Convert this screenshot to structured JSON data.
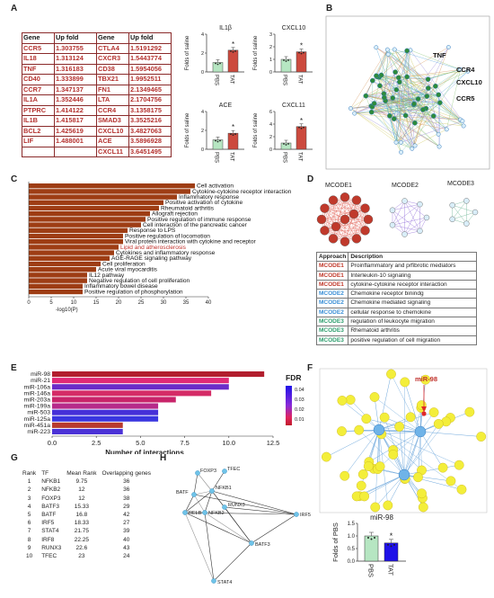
{
  "labels": {
    "a": "A",
    "b": "B",
    "c": "C",
    "d": "D",
    "e": "E",
    "f": "F",
    "g": "G",
    "h": "H"
  },
  "panelA": {
    "headers": [
      "Gene",
      "Up fold",
      "Gene",
      "Up fold"
    ],
    "rows": [
      [
        "CCR5",
        "1.303755",
        "CTLA4",
        "1.5191292"
      ],
      [
        "IL18",
        "1.313124",
        "CXCR3",
        "1.5443774"
      ],
      [
        "TNF",
        "1.316183",
        "CD38",
        "1.5954056"
      ],
      [
        "CD40",
        "1.333899",
        "TBX21",
        "1.9952511"
      ],
      [
        "CCR7",
        "1.347137",
        "FN1",
        "2.1349465"
      ],
      [
        "IL1A",
        "1.352446",
        "LTA",
        "2.1704756"
      ],
      [
        "PTPRC",
        "1.414122",
        "CCR4",
        "3.1358175"
      ],
      [
        "IL1B",
        "1.415817",
        "SMAD3",
        "3.3525216"
      ],
      [
        "BCL2",
        "1.425619",
        "CXCL10",
        "3.4827063"
      ],
      [
        "LIF",
        "1.488001",
        "ACE",
        "3.5896928"
      ],
      [
        "",
        "",
        "CXCL11",
        "3.6451495"
      ]
    ],
    "ylabel": "Folds of saline",
    "charts": [
      {
        "title": "IL1β",
        "yticks": [
          "0",
          "2",
          "4"
        ],
        "ymax": 4,
        "values": [
          1.0,
          2.3
        ],
        "star": "*"
      },
      {
        "title": "CXCL10",
        "yticks": [
          "0",
          "1",
          "2",
          "3"
        ],
        "ymax": 3,
        "values": [
          1.0,
          1.6
        ],
        "star": "*"
      },
      {
        "title": "ACE",
        "yticks": [
          "0",
          "2",
          "4"
        ],
        "ymax": 4,
        "values": [
          1.0,
          1.7
        ],
        "star": "*"
      },
      {
        "title": "CXCL11",
        "yticks": [
          "0",
          "2",
          "4",
          "6"
        ],
        "ymax": 6,
        "values": [
          1.0,
          3.6
        ],
        "star": "*"
      }
    ],
    "groups": [
      "PBS",
      "TAT"
    ],
    "colors": {
      "pbs": "#b6e6c2",
      "tat": "#cc4a3e"
    }
  },
  "panelB": {
    "labels": [
      "TNF",
      "CCR4",
      "CXCL10",
      "CCR5"
    ]
  },
  "panelC": {
    "terms": [
      {
        "label": "Cell activation",
        "value": 37.0,
        "color": "#111111"
      },
      {
        "label": "Cytokine-cytokine receptor interaction",
        "value": 36.0,
        "color": "#111111"
      },
      {
        "label": "Inflammatory response",
        "value": 33.0,
        "color": "#111111"
      },
      {
        "label": "Positive activation of cytokine",
        "value": 30.0,
        "color": "#111111"
      },
      {
        "label": "Rheumatoid arthritis",
        "value": 29.0,
        "color": "#111111"
      },
      {
        "label": "Allograft rejection",
        "value": 27.0,
        "color": "#111111"
      },
      {
        "label": "Positive regulation of immune response",
        "value": 26.0,
        "color": "#111111"
      },
      {
        "label": "Cell interaction of the pancreatic cancer",
        "value": 25.0,
        "color": "#111111"
      },
      {
        "label": "Response to LPS",
        "value": 22.0,
        "color": "#111111"
      },
      {
        "label": "Positive regulation of locomotion",
        "value": 21.0,
        "color": "#111111"
      },
      {
        "label": "Viral protein interaction with cytokine and receptor",
        "value": 21.0,
        "color": "#111111"
      },
      {
        "label": "Lipid and atherosclerosis",
        "value": 20.0,
        "color": "#c0302b"
      },
      {
        "label": "Cytokines and inflammatory response",
        "value": 19.0,
        "color": "#111111"
      },
      {
        "label": "AGE-RAGE signaling pathway",
        "value": 18.0,
        "color": "#111111"
      },
      {
        "label": "Cell proliferation",
        "value": 16.0,
        "color": "#111111"
      },
      {
        "label": "Acute viral myocarditis",
        "value": 15.0,
        "color": "#111111"
      },
      {
        "label": "IL12 pathway",
        "value": 13.0,
        "color": "#111111"
      },
      {
        "label": "Negative regulation of cell proliferation",
        "value": 13.0,
        "color": "#111111"
      },
      {
        "label": "Inflammatory bowel disease",
        "value": 12.0,
        "color": "#111111"
      },
      {
        "label": "Positive regulation of phosphorylation",
        "value": 12.0,
        "color": "#111111"
      }
    ],
    "ticks": [
      "0",
      "5",
      "10",
      "15",
      "20",
      "25",
      "30",
      "35",
      "40"
    ],
    "xmax": 40,
    "xlabel": "-log10(P)",
    "bar_color": "#9e3d14"
  },
  "panelD": {
    "cluster_titles": [
      "MCODE1",
      "MCODE2",
      "MCODE3"
    ],
    "headers": [
      "Approach",
      "Description"
    ],
    "rows": [
      {
        "approach": "MCODE1",
        "desc": "Proinflammatory and prfibrotic mediators",
        "color": "#c0392b"
      },
      {
        "approach": "MCODE1",
        "desc": "Interleukin-10 signaling",
        "color": "#c0392b"
      },
      {
        "approach": "MCODE1",
        "desc": "cytokine-cytokine receptor interaction",
        "color": "#c0392b"
      },
      {
        "approach": "MCODE2",
        "desc": "Chemokine receptor binindg",
        "color": "#3a8fd6"
      },
      {
        "approach": "MCODE2",
        "desc": "Chemokine mediated signaling",
        "color": "#3a8fd6"
      },
      {
        "approach": "MCODE2",
        "desc": "cellular response to chemokine",
        "color": "#3a8fd6"
      },
      {
        "approach": "MCODE3",
        "desc": "regulation of leukocyte migration",
        "color": "#2e9e6e"
      },
      {
        "approach": "MCODE3",
        "desc": "Rhematoid arthritis",
        "color": "#2e9e6e"
      },
      {
        "approach": "MCODE3",
        "desc": "positive regulation of cell migration",
        "color": "#2e9e6e"
      }
    ]
  },
  "panelE": {
    "mirnas": [
      {
        "name": "miR-98",
        "value": 12.0,
        "color": "#b21e2e"
      },
      {
        "name": "miR-21",
        "value": 10.0,
        "color": "#e02a76"
      },
      {
        "name": "miR-106a",
        "value": 10.0,
        "color": "#6a2cc8"
      },
      {
        "name": "miR-146a",
        "value": 9.0,
        "color": "#d52c66"
      },
      {
        "name": "miR-203a",
        "value": 7.0,
        "color": "#c8246a"
      },
      {
        "name": "miR-199a",
        "value": 6.0,
        "color": "#b62a8a"
      },
      {
        "name": "miR-503",
        "value": 6.0,
        "color": "#4630d8"
      },
      {
        "name": "miR-125a",
        "value": 6.0,
        "color": "#3a36e0"
      },
      {
        "name": "miR-451a",
        "value": 4.0,
        "color": "#b83a2e"
      },
      {
        "name": "miR-223",
        "value": 4.0,
        "color": "#4b32d6"
      }
    ],
    "xticks": [
      "0.0",
      "2.5",
      "5.0",
      "7.5",
      "10.0",
      "12.5"
    ],
    "xmax": 12.5,
    "xlabel": "Number of interactions",
    "legend_title": "FDR",
    "legend_ticks": [
      "0.04",
      "0.03",
      "0.02",
      "0.01"
    ]
  },
  "panelF": {
    "hub_label": "miR-98",
    "bar_title": "miR-98",
    "ylabel": "Folds of PBS",
    "yticks": [
      "0.0",
      "0.5",
      "1.0",
      "1.5"
    ],
    "ymax": 1.5,
    "groups": [
      "PBS",
      "TAT"
    ],
    "values": [
      1.0,
      0.72
    ],
    "star": "*",
    "colors": {
      "pbs": "#b6e6c2",
      "tat": "#1f12e8"
    }
  },
  "panelG": {
    "headers": [
      "Rank",
      "TF",
      "Mean Rank",
      "Overlapping genes"
    ],
    "rows": [
      [
        "1",
        "NFKB1",
        "9.75",
        "36"
      ],
      [
        "2",
        "NFKB2",
        "12",
        "36"
      ],
      [
        "3",
        "FOXP3",
        "12",
        "38"
      ],
      [
        "4",
        "BATF3",
        "15.33",
        "29"
      ],
      [
        "5",
        "BATF",
        "16.8",
        "42"
      ],
      [
        "6",
        "IRF5",
        "18.33",
        "27"
      ],
      [
        "7",
        "STAT4",
        "21.75",
        "39"
      ],
      [
        "8",
        "IRF8",
        "22.25",
        "40"
      ],
      [
        "9",
        "RUNX3",
        "22.6",
        "43"
      ],
      [
        "10",
        "TFEC",
        "23",
        "24"
      ]
    ]
  },
  "panelH": {
    "nodes": [
      "FOXP3",
      "TFEC",
      "NFKB1",
      "BATF",
      "RELB",
      "NFKB2",
      "RUNX3",
      "IRF5",
      "BATF3",
      "STAT4"
    ]
  }
}
